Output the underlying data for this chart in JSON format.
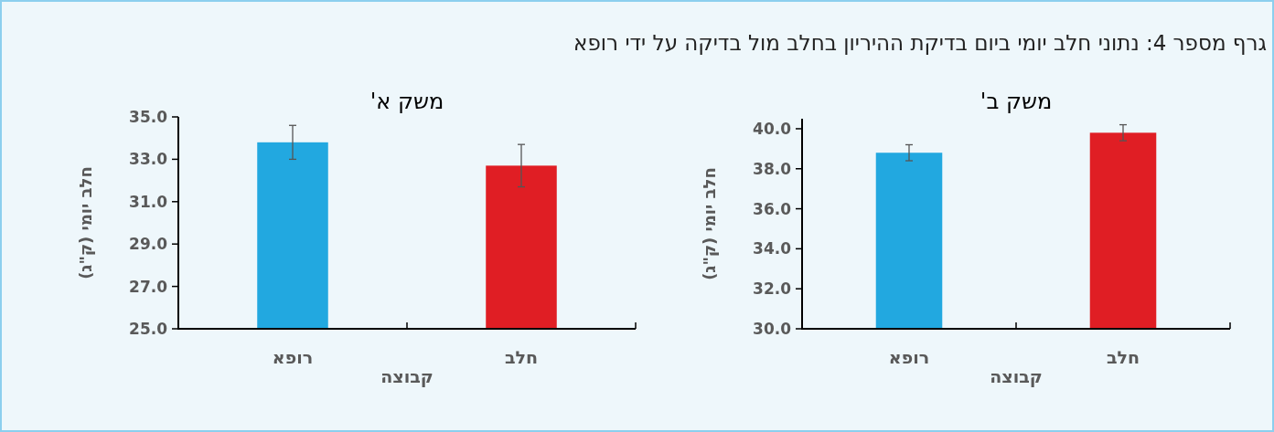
{
  "chart_data": [
    {
      "type": "bar",
      "title": "משק א'",
      "annotations": [
        "גרף מספר 4: נתוני חלב יומי ביום בדיקת ההיריון בחלב מול בדיקה על ידי רופא"
      ],
      "xlabel": "קבוצה",
      "ylabel": "חלב יומי (ק\"ג)",
      "categories": [
        "רופא",
        "חלב"
      ],
      "values": [
        33.8,
        32.7
      ],
      "errors": [
        0.8,
        1.0
      ],
      "colors": [
        "#22a8e0",
        "#e01e24"
      ],
      "ylim": [
        25,
        35
      ],
      "yticks": [
        {
          "value": 25,
          "label": "25.0"
        },
        {
          "value": 27,
          "label": "27.0"
        },
        {
          "value": 29,
          "label": "29.0"
        },
        {
          "value": 31,
          "label": "31.0"
        },
        {
          "value": 33,
          "label": "33.0"
        },
        {
          "value": 35,
          "label": "35.0"
        }
      ]
    },
    {
      "type": "bar",
      "title": "משק ב'",
      "xlabel": "קבוצה",
      "ylabel": "חלב יומי (ק\"ג)",
      "categories": [
        "רופא",
        "חלב"
      ],
      "values": [
        38.8,
        39.8
      ],
      "errors": [
        0.4,
        0.4
      ],
      "colors": [
        "#22a8e0",
        "#e01e24"
      ],
      "ylim": [
        30,
        40.5
      ],
      "yticks": [
        {
          "value": 30,
          "label": "30.0"
        },
        {
          "value": 32,
          "label": "32.0"
        },
        {
          "value": 34,
          "label": "34.0"
        },
        {
          "value": 36,
          "label": "36.0"
        },
        {
          "value": 38,
          "label": "38.0"
        },
        {
          "value": 40,
          "label": "40.0"
        }
      ]
    }
  ]
}
